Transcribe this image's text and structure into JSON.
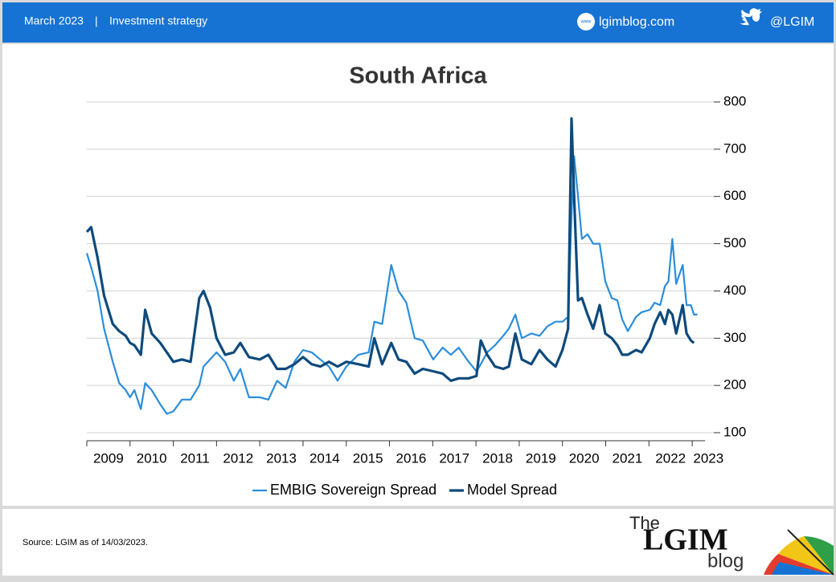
{
  "header": {
    "date": "March 2023",
    "separator": "|",
    "section": "Investment strategy",
    "site_icon": "www",
    "site": "lgimblog.com",
    "twitter": "@LGIM"
  },
  "footer": {
    "source": "Source: LGIM as of 14/03/2023.",
    "logo_the": "The",
    "logo_main": "LGIM",
    "logo_blog": "blog"
  },
  "chart_data": {
    "type": "line",
    "title": "South Africa",
    "x": [
      2009.0,
      2009.1,
      2009.25,
      2009.4,
      2009.6,
      2009.75,
      2009.9,
      2010.0,
      2010.1,
      2010.25,
      2010.35,
      2010.5,
      2010.7,
      2010.85,
      2011.0,
      2011.2,
      2011.4,
      2011.6,
      2011.7,
      2011.85,
      2012.0,
      2012.2,
      2012.4,
      2012.55,
      2012.75,
      2013.0,
      2013.2,
      2013.4,
      2013.6,
      2013.8,
      2014.0,
      2014.2,
      2014.4,
      2014.6,
      2014.8,
      2015.0,
      2015.28,
      2015.52,
      2015.65,
      2015.83,
      2016.04,
      2016.21,
      2016.39,
      2016.58,
      2016.77,
      2017.01,
      2017.23,
      2017.42,
      2017.6,
      2017.83,
      2018.01,
      2018.11,
      2018.26,
      2018.44,
      2018.63,
      2018.76,
      2018.91,
      2019.06,
      2019.28,
      2019.47,
      2019.65,
      2019.84,
      2020.0,
      2020.13,
      2020.21,
      2020.27,
      2020.36,
      2020.45,
      2020.58,
      2020.71,
      2020.86,
      2020.99,
      2021.14,
      2021.27,
      2021.38,
      2021.51,
      2021.7,
      2021.83,
      2022.02,
      2022.13,
      2022.26,
      2022.37,
      2022.45,
      2022.54,
      2022.63,
      2022.78,
      2022.87,
      2022.97,
      2023.04,
      2023.12
    ],
    "series": [
      {
        "name": "EMBIG Sovereign Spread",
        "color": "#2b8ddb",
        "values": [
          480,
          450,
          400,
          320,
          250,
          205,
          190,
          175,
          190,
          150,
          205,
          190,
          160,
          140,
          145,
          170,
          170,
          200,
          240,
          255,
          270,
          250,
          210,
          235,
          175,
          175,
          170,
          210,
          195,
          250,
          275,
          270,
          255,
          240,
          210,
          240,
          265,
          270,
          335,
          330,
          455,
          400,
          375,
          300,
          295,
          255,
          280,
          265,
          280,
          250,
          230,
          245,
          270,
          285,
          305,
          320,
          350,
          300,
          310,
          305,
          325,
          335,
          335,
          345,
          560,
          685,
          600,
          510,
          520,
          500,
          500,
          420,
          385,
          380,
          340,
          315,
          345,
          355,
          360,
          375,
          370,
          410,
          420,
          510,
          415,
          455,
          370,
          370,
          350,
          350
        ]
      },
      {
        "name": "Model Spread",
        "color": "#0e4a7c",
        "values": [
          525,
          535,
          470,
          390,
          330,
          315,
          305,
          290,
          285,
          265,
          360,
          310,
          290,
          270,
          250,
          255,
          250,
          385,
          400,
          365,
          300,
          265,
          270,
          290,
          260,
          255,
          265,
          235,
          235,
          245,
          260,
          245,
          240,
          250,
          240,
          250,
          245,
          240,
          300,
          245,
          290,
          255,
          250,
          225,
          235,
          230,
          225,
          210,
          215,
          215,
          220,
          295,
          265,
          240,
          235,
          240,
          310,
          255,
          245,
          275,
          255,
          240,
          275,
          320,
          765,
          600,
          380,
          385,
          350,
          320,
          370,
          310,
          300,
          285,
          265,
          265,
          275,
          270,
          300,
          330,
          355,
          330,
          360,
          350,
          310,
          370,
          310,
          295,
          290,
          null
        ]
      }
    ],
    "xlim": [
      2009,
      2023.5
    ],
    "xticks": [
      2009,
      2010,
      2011,
      2012,
      2013,
      2014,
      2015,
      2016,
      2017,
      2018,
      2019,
      2020,
      2021,
      2022,
      2023
    ],
    "ylim": [
      83,
      800
    ],
    "yticks": [
      100,
      200,
      300,
      400,
      500,
      600,
      700,
      800
    ],
    "grid": true,
    "legend": "bottom"
  }
}
